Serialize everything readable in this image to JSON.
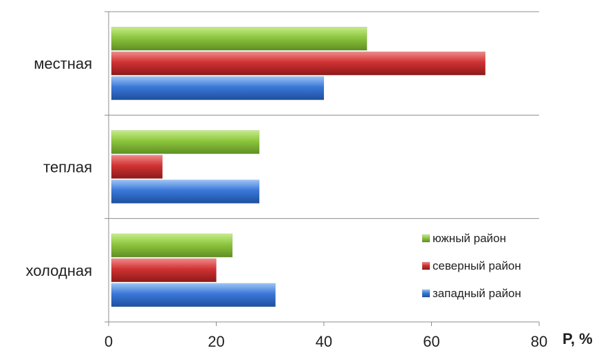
{
  "chart_data": {
    "type": "bar",
    "orientation": "horizontal",
    "categories": [
      "местная",
      "теплая",
      "холодная"
    ],
    "series": [
      {
        "name": "южный район",
        "color": "#8dc63f",
        "values": [
          48,
          28,
          23
        ]
      },
      {
        "name": "северный район",
        "color": "#d03232",
        "values": [
          70,
          10,
          20
        ]
      },
      {
        "name": "западный район",
        "color": "#3a78d8",
        "values": [
          40,
          28,
          31
        ]
      }
    ],
    "x_ticks": [
      "0",
      "20",
      "40",
      "60",
      "80"
    ],
    "xlim": [
      0,
      80
    ],
    "xlabel": "P, %",
    "grid": "horizontal separators between categories",
    "legend": {
      "position": "bottom-right",
      "entries": [
        "южный район",
        "северный район",
        "западный район"
      ]
    }
  }
}
